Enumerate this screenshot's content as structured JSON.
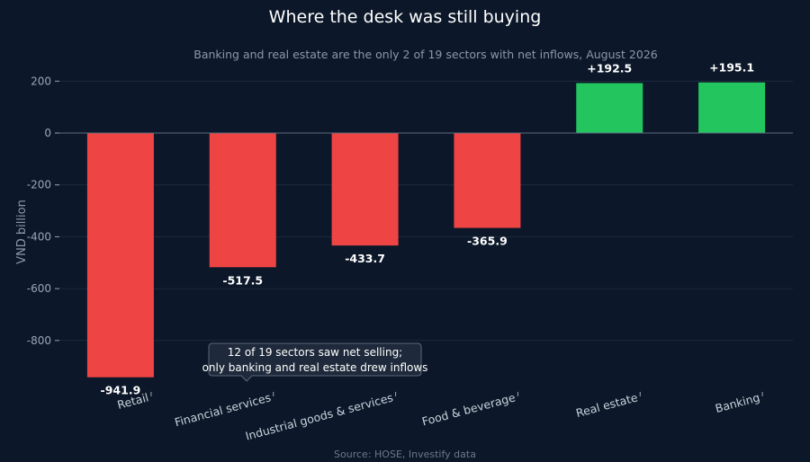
{
  "chart_data": {
    "type": "bar",
    "title": "Where the desk was still buying",
    "subtitle": "Banking and real estate are the only 2 of 19 sectors with net inflows, August 2026",
    "xlabel": "",
    "ylabel": "VND billion",
    "categories": [
      "Retail",
      "Financial services",
      "Industrial goods & services",
      "Food & beverage",
      "Real estate",
      "Banking"
    ],
    "values": [
      -941.9,
      -517.5,
      -433.7,
      -365.9,
      192.5,
      195.1
    ],
    "data_labels": [
      "-941.9",
      "-517.5",
      "-433.7",
      "-365.9",
      "+192.5",
      "+195.1"
    ],
    "y_ticks": [
      200,
      0,
      -200,
      -400,
      -600,
      -800
    ],
    "y_tick_labels": [
      "200",
      "0",
      "-200",
      "-400",
      "-600",
      "-800"
    ],
    "ylim": [
      -960,
      225
    ],
    "grid": true,
    "legend": "none",
    "annotation": {
      "lines": [
        "12 of 19 sectors saw net selling;",
        "only banking and real estate drew inflows"
      ]
    },
    "source": "Source: HOSE, Investify data",
    "colors": {
      "background": "#0c1829",
      "negative": "#ef4444",
      "positive": "#22c55e",
      "text": "#ffffff",
      "muted": "#8b98ab",
      "grid": "#1b2a3e"
    }
  }
}
